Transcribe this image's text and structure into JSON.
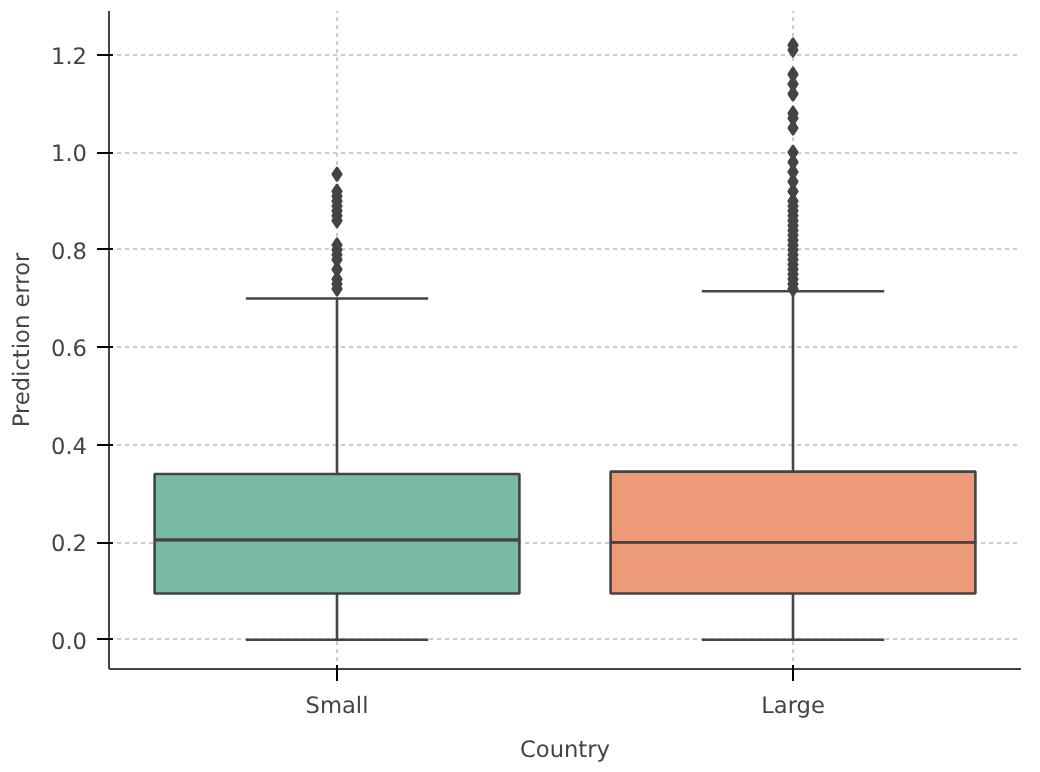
{
  "chart_data": {
    "type": "box",
    "xlabel": "Country",
    "ylabel": "Prediction error",
    "categories": [
      "Small",
      "Large"
    ],
    "colors": [
      "#78baa3",
      "#ec9a78"
    ],
    "boxes": [
      {
        "low": 0.0,
        "q1": 0.095,
        "median": 0.205,
        "q3": 0.34,
        "high": 0.7,
        "outliers": [
          0.72,
          0.73,
          0.74,
          0.76,
          0.78,
          0.79,
          0.8,
          0.81,
          0.86,
          0.87,
          0.88,
          0.89,
          0.9,
          0.91,
          0.92,
          0.955
        ]
      },
      {
        "low": 0.0,
        "q1": 0.095,
        "median": 0.2,
        "q3": 0.345,
        "high": 0.715,
        "outliers": [
          0.72,
          0.73,
          0.74,
          0.75,
          0.76,
          0.77,
          0.78,
          0.79,
          0.8,
          0.81,
          0.82,
          0.83,
          0.84,
          0.85,
          0.86,
          0.87,
          0.88,
          0.89,
          0.9,
          0.92,
          0.94,
          0.96,
          0.98,
          1.0,
          1.05,
          1.07,
          1.08,
          1.12,
          1.14,
          1.16,
          1.21,
          1.22
        ]
      }
    ],
    "ylim": [
      -0.06,
      1.29
    ],
    "yticks": [
      {
        "value": 0,
        "label": "0.0"
      },
      0.2,
      0.4,
      0.6,
      0.8,
      {
        "value": 1,
        "label": "1.0"
      },
      1.2
    ],
    "grid": true
  }
}
